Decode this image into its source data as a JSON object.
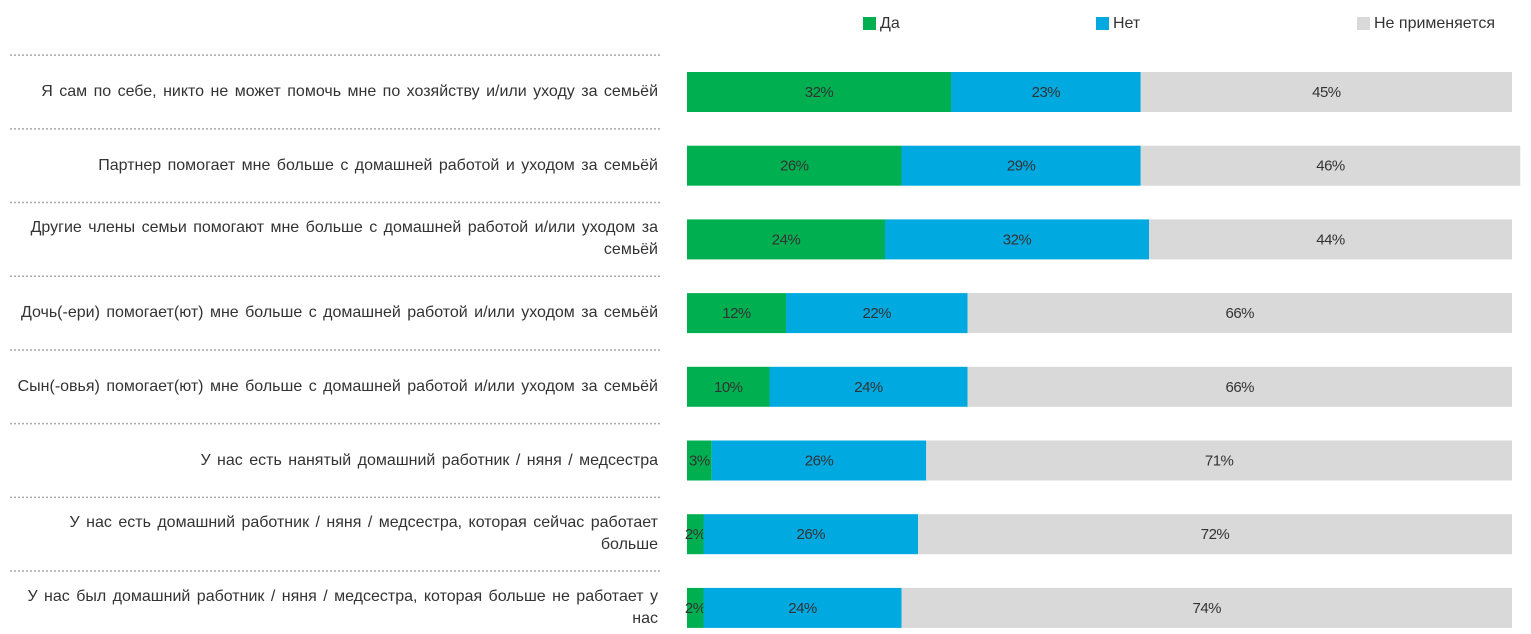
{
  "chart_data": {
    "type": "stacked_barh",
    "categories": [
      "Я сам по себе, никто не может помочь мне по хозяйству и/или уходу за семьёй",
      "Партнер помогает мне больше с домашней работой и уходом за семьёй",
      "Другие члены семьи помогают мне больше с домашней работой и/или уходом за семьёй",
      "Дочь(-ери) помогает(ют) мне больше с домашней работой и/или уходом за семьёй",
      "Сын(-овья) помогает(ют) мне больше с домашней работой и/или уходом за семьёй",
      "У нас есть нанятый домашний работник / няня / медсестра",
      "У нас есть домашний работник / няня / медсестра, которая сейчас работает больше",
      "У нас был домашний работник / няня / медсестра, которая больше не работает у нас"
    ],
    "series": [
      {
        "name": "Да",
        "color": "#00b050",
        "values": [
          32,
          26,
          24,
          12,
          10,
          3,
          2,
          2
        ],
        "value_labels": [
          "32%",
          "26%",
          "24%",
          "12%",
          "10%",
          "3%",
          "2%",
          "2%"
        ]
      },
      {
        "name": "Нет",
        "color": "#00a9e0",
        "values": [
          23,
          29,
          32,
          22,
          24,
          26,
          26,
          24
        ],
        "value_labels": [
          "23%",
          "29%",
          "32%",
          "22%",
          "24%",
          "26%",
          "26%",
          "24%"
        ]
      },
      {
        "name": "Не применяется",
        "color": "#d9d9d9",
        "values": [
          45,
          46,
          44,
          66,
          66,
          71,
          72,
          74
        ],
        "value_labels": [
          "45%",
          "46%",
          "44%",
          "66%",
          "66%",
          "71%",
          "72%",
          "74%"
        ]
      }
    ],
    "xlim": [
      0,
      100
    ],
    "legend": "top-right"
  }
}
